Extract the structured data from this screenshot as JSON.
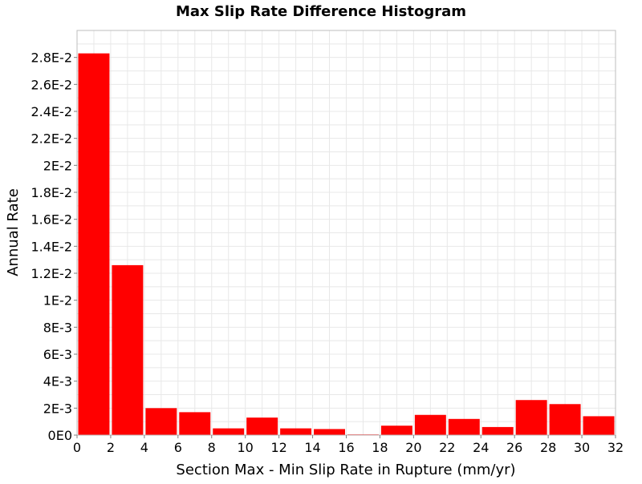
{
  "chart_data": {
    "type": "bar",
    "title": "Max Slip Rate Difference Histogram",
    "xlabel": "Section Max - Min Slip Rate in Rupture (mm/yr)",
    "ylabel": "Annual Rate",
    "xlim": [
      0,
      32
    ],
    "ylim": [
      0,
      0.03
    ],
    "grid": true,
    "bar_color": "#ff0000",
    "bin_width": 2,
    "bins": [
      {
        "x0": 0,
        "x1": 2,
        "value": 0.0283
      },
      {
        "x0": 2,
        "x1": 4,
        "value": 0.0126
      },
      {
        "x0": 4,
        "x1": 6,
        "value": 0.002
      },
      {
        "x0": 6,
        "x1": 8,
        "value": 0.0017
      },
      {
        "x0": 8,
        "x1": 10,
        "value": 0.0005
      },
      {
        "x0": 10,
        "x1": 12,
        "value": 0.0013
      },
      {
        "x0": 12,
        "x1": 14,
        "value": 0.0005
      },
      {
        "x0": 14,
        "x1": 16,
        "value": 0.00045
      },
      {
        "x0": 16,
        "x1": 18,
        "value": 5e-05
      },
      {
        "x0": 18,
        "x1": 20,
        "value": 0.0007
      },
      {
        "x0": 20,
        "x1": 22,
        "value": 0.0015
      },
      {
        "x0": 22,
        "x1": 24,
        "value": 0.0012
      },
      {
        "x0": 24,
        "x1": 26,
        "value": 0.0006
      },
      {
        "x0": 26,
        "x1": 28,
        "value": 0.0026
      },
      {
        "x0": 28,
        "x1": 30,
        "value": 0.0023
      },
      {
        "x0": 30,
        "x1": 32,
        "value": 0.0014
      }
    ],
    "x_ticks": [
      {
        "value": 0,
        "label": "0"
      },
      {
        "value": 2,
        "label": "2"
      },
      {
        "value": 4,
        "label": "4"
      },
      {
        "value": 6,
        "label": "6"
      },
      {
        "value": 8,
        "label": "8"
      },
      {
        "value": 10,
        "label": "10"
      },
      {
        "value": 12,
        "label": "12"
      },
      {
        "value": 14,
        "label": "14"
      },
      {
        "value": 16,
        "label": "16"
      },
      {
        "value": 18,
        "label": "18"
      },
      {
        "value": 20,
        "label": "20"
      },
      {
        "value": 22,
        "label": "22"
      },
      {
        "value": 24,
        "label": "24"
      },
      {
        "value": 26,
        "label": "26"
      },
      {
        "value": 28,
        "label": "28"
      },
      {
        "value": 30,
        "label": "30"
      },
      {
        "value": 32,
        "label": "32"
      }
    ],
    "y_ticks": [
      {
        "value": 0,
        "label": "0E0"
      },
      {
        "value": 0.002,
        "label": "2E-3"
      },
      {
        "value": 0.004,
        "label": "4E-3"
      },
      {
        "value": 0.006,
        "label": "6E-3"
      },
      {
        "value": 0.008,
        "label": "8E-3"
      },
      {
        "value": 0.01,
        "label": "1E-2"
      },
      {
        "value": 0.012,
        "label": "1.2E-2"
      },
      {
        "value": 0.014,
        "label": "1.4E-2"
      },
      {
        "value": 0.016,
        "label": "1.6E-2"
      },
      {
        "value": 0.018,
        "label": "1.8E-2"
      },
      {
        "value": 0.02,
        "label": "2E-2"
      },
      {
        "value": 0.022,
        "label": "2.2E-2"
      },
      {
        "value": 0.024,
        "label": "2.4E-2"
      },
      {
        "value": 0.026,
        "label": "2.6E-2"
      },
      {
        "value": 0.028,
        "label": "2.8E-2"
      }
    ]
  }
}
